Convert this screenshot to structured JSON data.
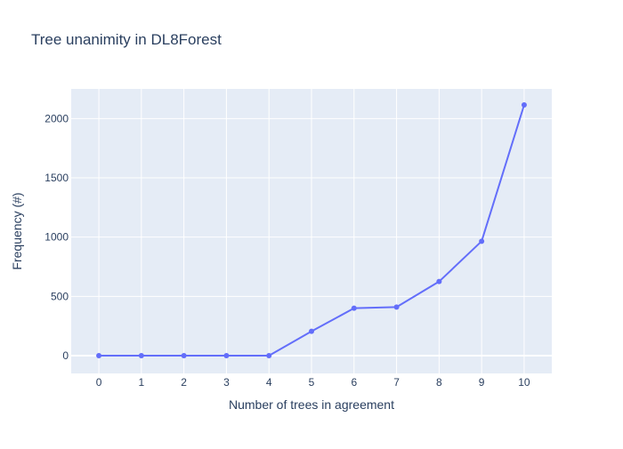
{
  "chart_data": {
    "type": "line",
    "title": "Tree unanimity in DL8Forest",
    "xlabel": "Number of trees in agreement",
    "ylabel": "Frequency (#)",
    "x": [
      0,
      1,
      2,
      3,
      4,
      5,
      6,
      7,
      8,
      9,
      10
    ],
    "series": [
      {
        "values": [
          0,
          0,
          0,
          0,
          0,
          205,
          400,
          410,
          625,
          965,
          2115
        ]
      }
    ],
    "xlim": [
      -0.65,
      10.65
    ],
    "ylim": [
      -150,
      2250
    ],
    "xticks": [
      "0",
      "1",
      "2",
      "3",
      "4",
      "5",
      "6",
      "7",
      "8",
      "9",
      "10"
    ],
    "yticks": [
      "0",
      "500",
      "1000",
      "1500",
      "2000"
    ],
    "ytick_values": [
      0,
      500,
      1000,
      1500,
      2000
    ],
    "grid": true,
    "colors": {
      "series": "#636efa",
      "plot_background": "#e5ecf6",
      "grid": "#ffffff",
      "text": "#2a3f5f"
    }
  }
}
